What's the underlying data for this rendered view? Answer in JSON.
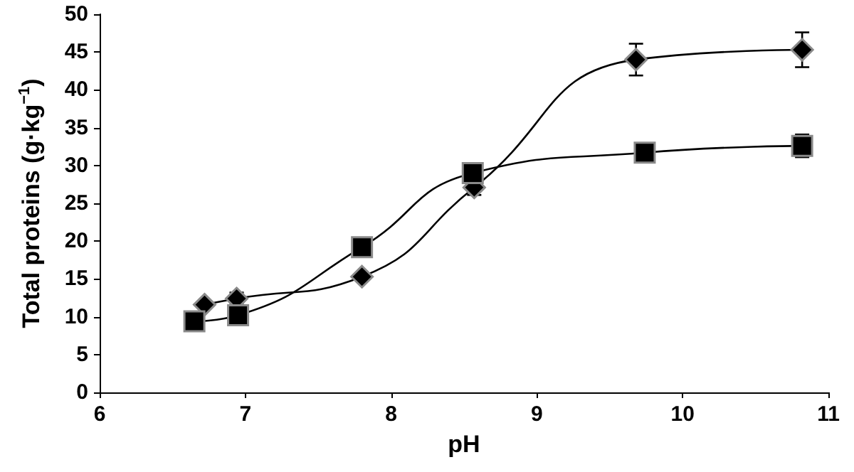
{
  "chart_data": {
    "type": "line",
    "xlabel": "pH",
    "ylabel": "Total proteins (g·kg$^{−1}$)",
    "xlim": [
      6,
      11
    ],
    "xticks": [
      6,
      7,
      8,
      9,
      10,
      11
    ],
    "ylim": [
      0,
      50
    ],
    "yticks": [
      0,
      5,
      10,
      15,
      20,
      25,
      30,
      35,
      40,
      45,
      50
    ],
    "grid": false,
    "series": [
      {
        "color": "#000000",
        "marker": "diamond",
        "x": [
          6.72,
          6.94,
          7.8,
          8.57,
          9.68,
          10.82
        ],
        "values": [
          11.6,
          12.4,
          15.3,
          27.1,
          44.0,
          45.3
        ],
        "errors": [
          null,
          0.8,
          null,
          1.0,
          2.1,
          2.3
        ]
      },
      {
        "color": "#000000",
        "marker": "square",
        "x": [
          6.65,
          6.95,
          7.8,
          8.56,
          9.74,
          10.82
        ],
        "values": [
          9.4,
          10.2,
          19.2,
          29.0,
          31.7,
          32.6
        ],
        "errors": [
          null,
          null,
          null,
          null,
          1.0,
          1.5
        ]
      }
    ]
  }
}
